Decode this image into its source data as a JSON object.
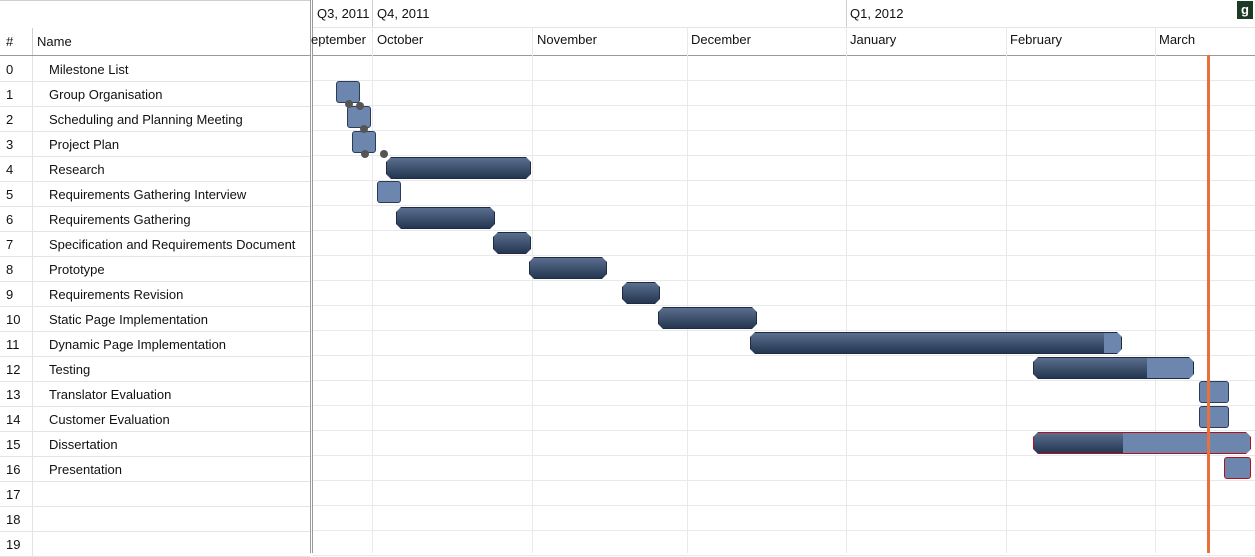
{
  "table": {
    "num_header": "#",
    "name_header": "Name",
    "rows": [
      {
        "num": "0",
        "name": "Milestone List"
      },
      {
        "num": "1",
        "name": "Group Organisation"
      },
      {
        "num": "2",
        "name": "Scheduling and Planning Meeting"
      },
      {
        "num": "3",
        "name": "Project Plan"
      },
      {
        "num": "4",
        "name": "Research"
      },
      {
        "num": "5",
        "name": "Requirements Gathering Interview"
      },
      {
        "num": "6",
        "name": "Requirements Gathering"
      },
      {
        "num": "7",
        "name": "Specification and Requirements Document"
      },
      {
        "num": "8",
        "name": "Prototype"
      },
      {
        "num": "9",
        "name": "Requirements Revision"
      },
      {
        "num": "10",
        "name": "Static Page Implementation"
      },
      {
        "num": "11",
        "name": "Dynamic Page Implementation"
      },
      {
        "num": "12",
        "name": "Testing"
      },
      {
        "num": "13",
        "name": "Translator Evaluation"
      },
      {
        "num": "14",
        "name": "Customer Evaluation"
      },
      {
        "num": "15",
        "name": "Dissertation"
      },
      {
        "num": "16",
        "name": "Presentation"
      },
      {
        "num": "17",
        "name": ""
      },
      {
        "num": "18",
        "name": ""
      },
      {
        "num": "19",
        "name": ""
      }
    ]
  },
  "timeline": {
    "quarters": [
      "Q3, 2011",
      "Q4, 2011",
      "Q1, 2012"
    ],
    "months": [
      "eptember",
      "October",
      "November",
      "December",
      "January",
      "February",
      "March"
    ]
  },
  "colors": {
    "bar": "#2e4260",
    "progress": "#6c86ad",
    "today_line": "#e8703a",
    "critical_border": "#b01020"
  },
  "icons": {
    "corner": "gantt-app-icon"
  },
  "corner_glyph": "g"
}
